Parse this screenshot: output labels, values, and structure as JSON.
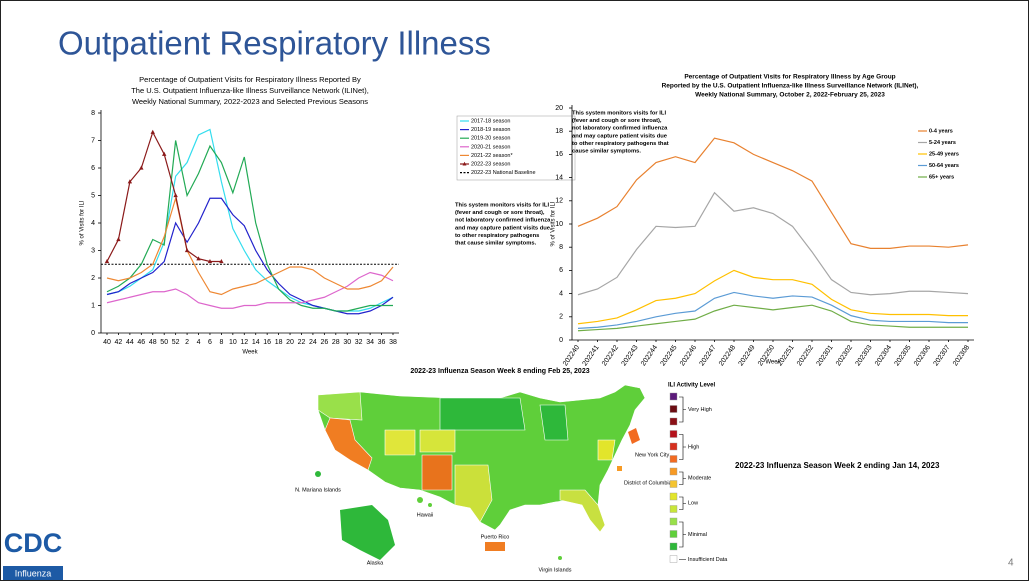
{
  "slide_title": "Outpatient Respiratory Illness",
  "chart_data": [
    {
      "type": "line",
      "title": [
        "Percentage of Outpatient Visits for Respiratory Illness Reported By",
        "The U.S. Outpatient Influenza-like Illness Surveillance Network (ILINet),",
        "Weekly National Summary, 2022-2023 and Selected Previous Seasons"
      ],
      "xlabel": "Week",
      "ylabel": "% of Visits for ILI",
      "categories": [
        40,
        42,
        44,
        46,
        48,
        50,
        52,
        2,
        4,
        6,
        8,
        10,
        12,
        14,
        16,
        18,
        20,
        22,
        24,
        26,
        28,
        30,
        32,
        34,
        36,
        38
      ],
      "ylim": [
        0,
        8
      ],
      "yticks": [
        0,
        1,
        2,
        3,
        4,
        5,
        6,
        7,
        8
      ],
      "series": [
        {
          "name": "2017-18 season",
          "color": "#33ddee",
          "values": [
            1.4,
            1.5,
            1.7,
            2.0,
            2.3,
            3.3,
            5.7,
            6.2,
            7.2,
            7.4,
            5.5,
            3.8,
            3.0,
            2.3,
            1.9,
            1.6,
            1.3,
            1.1,
            1.0,
            0.9,
            0.8,
            0.8,
            0.8,
            0.9,
            1.1,
            1.3
          ]
        },
        {
          "name": "2018-19 season",
          "color": "#2222cc",
          "values": [
            1.4,
            1.5,
            1.8,
            2.0,
            2.2,
            2.6,
            4.0,
            3.3,
            4.0,
            4.9,
            4.9,
            4.3,
            3.9,
            3.0,
            2.3,
            1.8,
            1.4,
            1.2,
            1.0,
            0.9,
            0.8,
            0.7,
            0.7,
            0.8,
            1.0,
            1.3
          ]
        },
        {
          "name": "2019-20 season",
          "color": "#22aa55",
          "values": [
            1.5,
            1.7,
            2.0,
            2.5,
            3.4,
            3.2,
            7.0,
            5.0,
            5.8,
            6.8,
            6.2,
            5.1,
            6.4,
            4.0,
            2.5,
            1.6,
            1.2,
            1.0,
            0.9,
            0.9,
            0.8,
            0.8,
            0.9,
            1.0,
            1.0,
            1.0
          ]
        },
        {
          "name": "2020-21 season",
          "color": "#dd66cc",
          "values": [
            1.1,
            1.2,
            1.3,
            1.4,
            1.5,
            1.5,
            1.6,
            1.4,
            1.1,
            1.0,
            0.9,
            0.9,
            1.0,
            1.0,
            1.1,
            1.1,
            1.1,
            1.1,
            1.2,
            1.3,
            1.5,
            1.7,
            2.0,
            2.2,
            2.1,
            1.9
          ]
        },
        {
          "name": "2021-22 season*",
          "color": "#ee8833",
          "values": [
            2.0,
            1.9,
            2.0,
            2.2,
            2.5,
            3.5,
            4.9,
            3.0,
            2.2,
            1.5,
            1.4,
            1.6,
            1.7,
            1.8,
            2.0,
            2.2,
            2.4,
            2.4,
            2.3,
            2.0,
            1.8,
            1.6,
            1.6,
            1.7,
            1.9,
            2.4
          ]
        },
        {
          "name": "2022-23 season",
          "color": "#8b1a1a",
          "marker": "triangle",
          "values": [
            2.6,
            3.4,
            5.5,
            6.0,
            7.3,
            6.5,
            5.0,
            3.0,
            2.7,
            2.6,
            2.6,
            null,
            null,
            null,
            null,
            null,
            null,
            null,
            null,
            null,
            null,
            null,
            null,
            null,
            null,
            null
          ]
        }
      ],
      "baseline": {
        "name": "2022-23 National Baseline",
        "value": 2.5,
        "color": "#000000"
      },
      "annotation": [
        "This system monitors visits for ILI",
        "(fever and cough or sore throat),",
        "not laboratory confirmed influenza",
        "and may capture patient visits due",
        "to other respiratory pathogens",
        "that cause similar symptoms."
      ]
    },
    {
      "type": "line",
      "title": [
        "Percentage of Outpatient Visits for Respiratory Illness by Age Group",
        "Reported by the U.S. Outpatient Influenza-like Illness Surveillance Network (ILINet),",
        "Weekly National Summary, October 2, 2022-February 25, 2023"
      ],
      "xlabel": "Week",
      "ylabel": "% of Visits for ILI",
      "categories": [
        "202240",
        "202241",
        "202242",
        "202243",
        "202244",
        "202245",
        "202246",
        "202247",
        "202248",
        "202249",
        "202250",
        "202251",
        "202252",
        "202301",
        "202302",
        "202303",
        "202304",
        "202305",
        "202306",
        "202307",
        "202308"
      ],
      "ylim": [
        0,
        20
      ],
      "yticks": [
        0,
        2,
        4,
        6,
        8,
        10,
        12,
        14,
        16,
        18,
        20
      ],
      "series": [
        {
          "name": "0-4 years",
          "color": "#e8812f",
          "values": [
            9.8,
            10.5,
            11.5,
            13.8,
            15.3,
            15.8,
            15.3,
            17.4,
            17.0,
            16.0,
            15.3,
            14.6,
            13.7,
            11.0,
            8.3,
            7.9,
            7.9,
            8.1,
            8.1,
            8.0,
            8.2
          ]
        },
        {
          "name": "5-24 years",
          "color": "#a6a6a6",
          "values": [
            3.9,
            4.4,
            5.4,
            7.8,
            9.8,
            9.7,
            9.8,
            12.7,
            11.1,
            11.4,
            10.9,
            9.8,
            7.6,
            5.2,
            4.1,
            3.9,
            4.0,
            4.2,
            4.2,
            4.1,
            4.0
          ]
        },
        {
          "name": "25-49 years",
          "color": "#ffc000",
          "values": [
            1.4,
            1.6,
            1.9,
            2.6,
            3.4,
            3.6,
            4.0,
            5.1,
            6.0,
            5.4,
            5.2,
            5.2,
            4.8,
            3.5,
            2.6,
            2.3,
            2.2,
            2.2,
            2.2,
            2.1,
            2.1
          ]
        },
        {
          "name": "50-64 years",
          "color": "#5b9bd5",
          "values": [
            1.0,
            1.1,
            1.3,
            1.6,
            2.0,
            2.3,
            2.5,
            3.6,
            4.1,
            3.8,
            3.6,
            3.8,
            3.7,
            3.0,
            2.1,
            1.7,
            1.6,
            1.6,
            1.6,
            1.5,
            1.5
          ]
        },
        {
          "name": "65+ years",
          "color": "#70ad47",
          "values": [
            0.8,
            0.9,
            1.0,
            1.2,
            1.4,
            1.6,
            1.8,
            2.5,
            3.0,
            2.8,
            2.6,
            2.8,
            3.0,
            2.5,
            1.6,
            1.3,
            1.2,
            1.1,
            1.1,
            1.1,
            1.1
          ]
        }
      ],
      "annotation": [
        "This system monitors visits for ILI",
        "(fever and cough or sore throat),",
        "not laboratory confirmed influenza",
        "and may capture patient visits due",
        "to other respiratory pathogens that",
        "cause similar symptoms."
      ]
    }
  ],
  "map": {
    "title": "2022-23 Influenza Season Week 8 ending Feb 25, 2023",
    "labels": [
      "N. Mariana Islands",
      "Hawaii",
      "Alaska",
      "Puerto Rico",
      "Virgin Islands",
      "New York City",
      "District of Columbia"
    ],
    "legend": {
      "title": "ILI Activity Level",
      "levels": [
        {
          "label": "Very High",
          "colors": [
            "#5b1a7a",
            "#6b0d12",
            "#8b1016"
          ]
        },
        {
          "label": "High",
          "colors": [
            "#b5121b",
            "#d6301e",
            "#f26b21"
          ]
        },
        {
          "label": "Moderate",
          "colors": [
            "#f79a24",
            "#f4c430"
          ]
        },
        {
          "label": "Low",
          "colors": [
            "#e2e52b",
            "#c8e63a"
          ]
        },
        {
          "label": "Minimal",
          "colors": [
            "#99e04a",
            "#5fcf3a",
            "#2eb83a"
          ]
        },
        {
          "label": "Insufficient Data",
          "colors": [
            "#ffffff"
          ]
        }
      ]
    },
    "inset_title": "2022-23 Influenza Season Week 2 ending Jan 14, 2023"
  },
  "logo": {
    "name": "CDC",
    "subtitle": "Influenza"
  },
  "page_number": "4"
}
